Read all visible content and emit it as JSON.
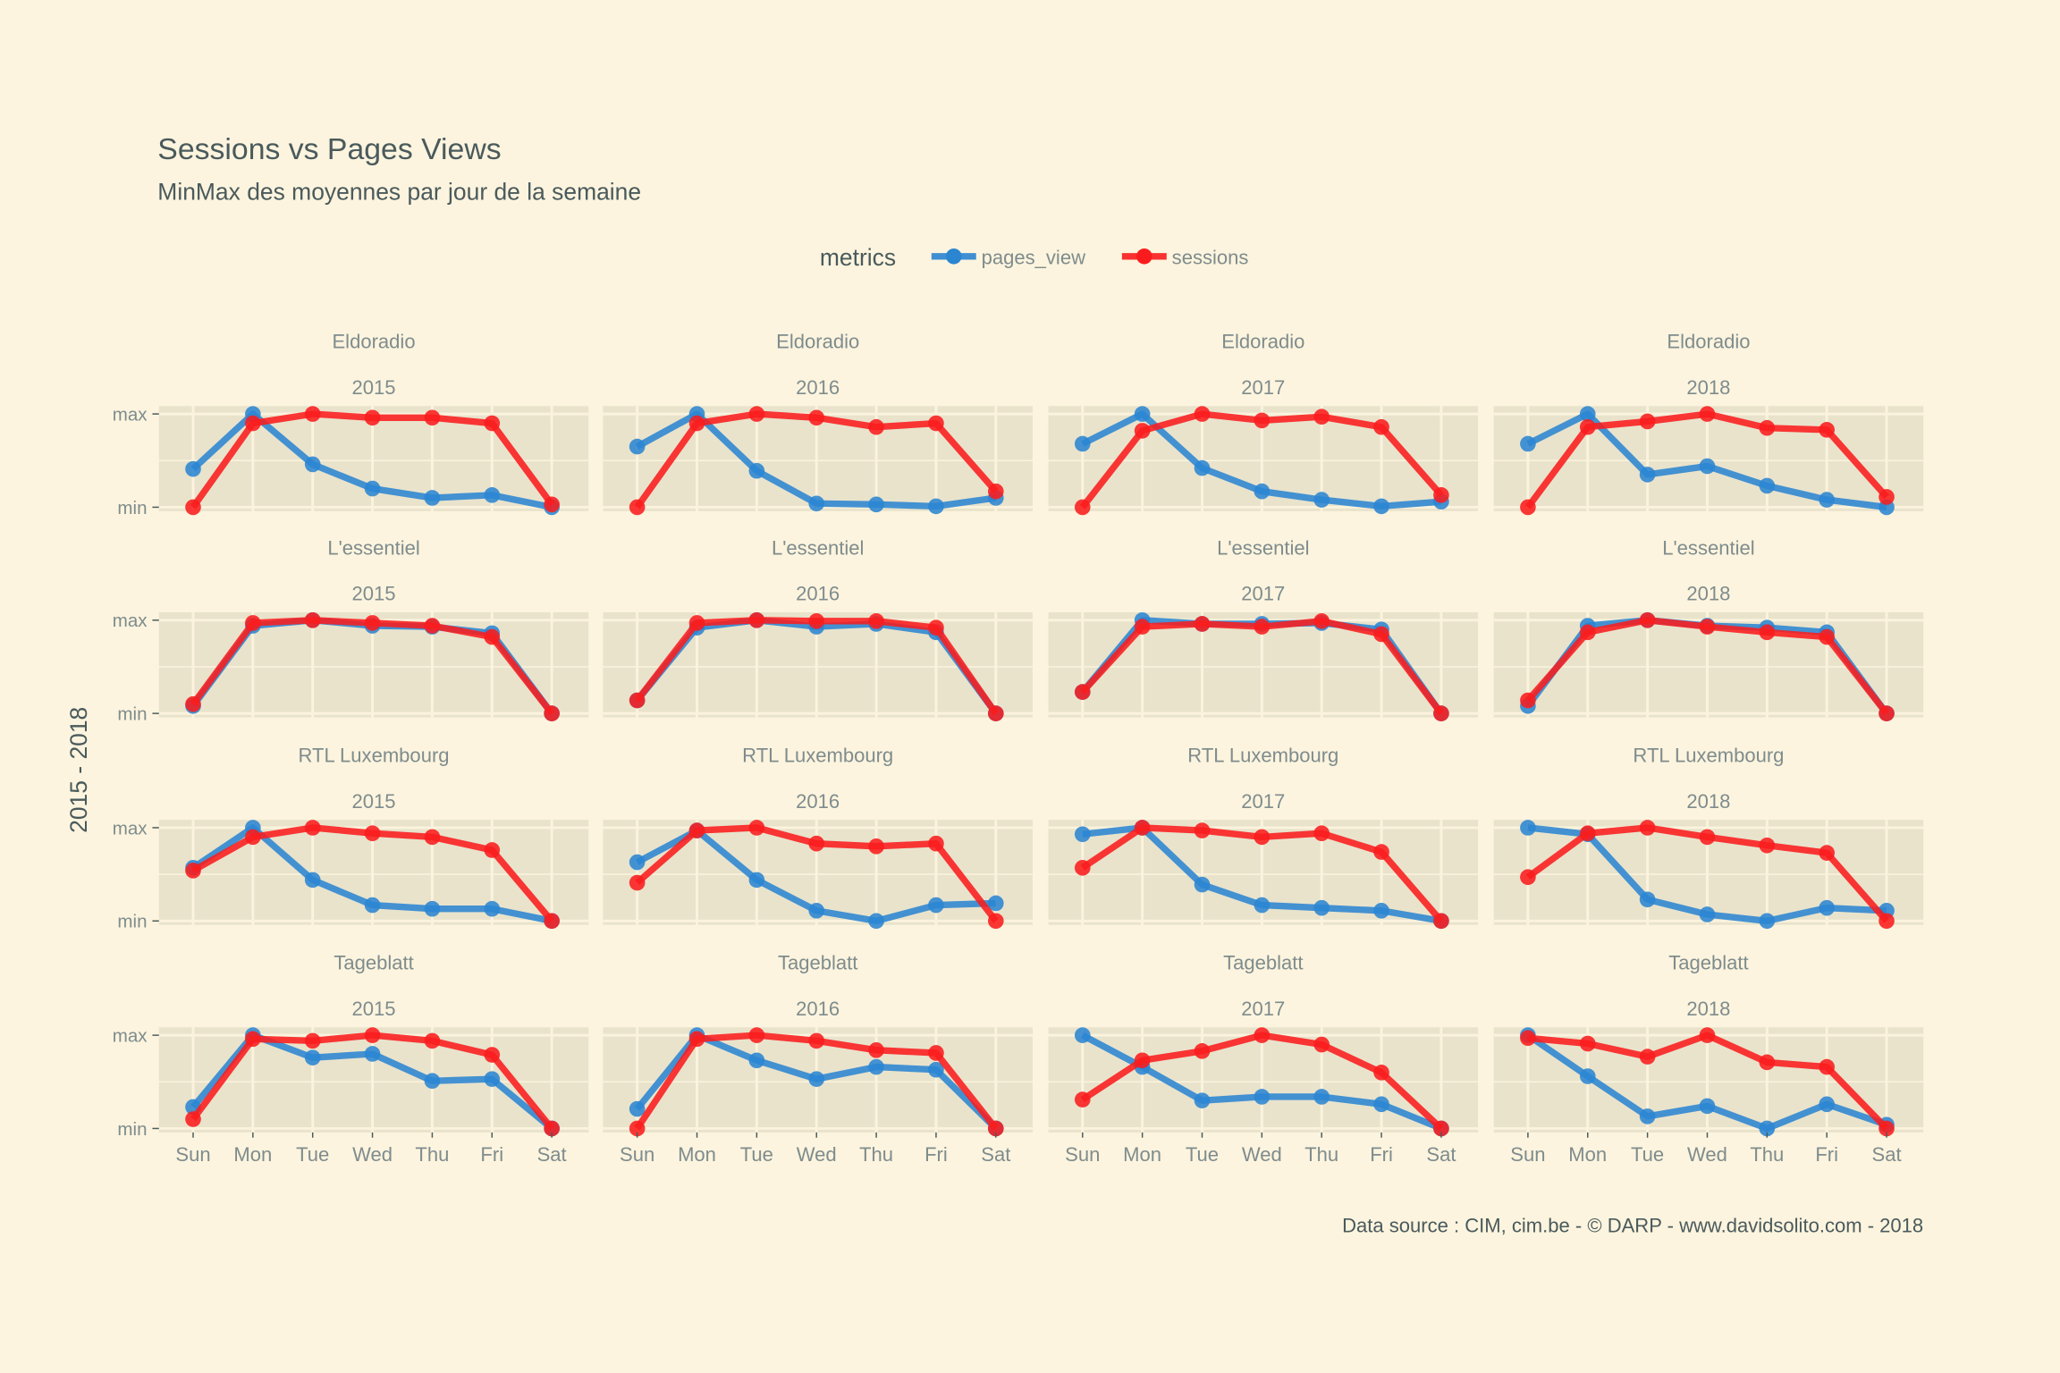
{
  "colors": {
    "background": "#fcf4de",
    "panel": "#e9e3cc",
    "grid": "#fbf3dd",
    "pages_view": "#2b85d1",
    "sessions": "#f91c1e",
    "title": "#4a5a5c",
    "muted": "#7f8c8d"
  },
  "chart_data": {
    "type": "line",
    "title": "Sessions vs Pages Views",
    "subtitle": "MinMax des moyennes par jour de la semaine",
    "caption": "Data source : CIM, cim.be - © DARP - www.davidsolito.com - 2018",
    "ylabel": "2015 - 2018",
    "ytick_labels": [
      "min",
      "max"
    ],
    "ylim": [
      0,
      1
    ],
    "categories": [
      "Sun",
      "Mon",
      "Tue",
      "Wed",
      "Thu",
      "Fri",
      "Sat"
    ],
    "legend": {
      "title": "metrics",
      "position": "top",
      "entries": [
        "pages_view",
        "sessions"
      ]
    },
    "rows": [
      "Eldoradio",
      "L'essentiel",
      "RTL Luxembourg",
      "Tageblatt"
    ],
    "cols": [
      "2015",
      "2016",
      "2017",
      "2018"
    ],
    "panels": [
      {
        "station": "Eldoradio",
        "year": "2015",
        "pages_view": [
          0.41,
          1,
          0.46,
          0.2,
          0.1,
          0.13,
          0
        ],
        "sessions": [
          0,
          0.9,
          1,
          0.96,
          0.96,
          0.9,
          0.03
        ]
      },
      {
        "station": "Eldoradio",
        "year": "2016",
        "pages_view": [
          0.65,
          1,
          0.39,
          0.04,
          0.03,
          0.01,
          0.1
        ],
        "sessions": [
          0,
          0.9,
          1,
          0.96,
          0.86,
          0.9,
          0.17
        ]
      },
      {
        "station": "Eldoradio",
        "year": "2017",
        "pages_view": [
          0.68,
          1,
          0.42,
          0.17,
          0.08,
          0.01,
          0.06
        ],
        "sessions": [
          0,
          0.82,
          1,
          0.93,
          0.97,
          0.86,
          0.13
        ]
      },
      {
        "station": "Eldoradio",
        "year": "2018",
        "pages_view": [
          0.68,
          1,
          0.35,
          0.44,
          0.23,
          0.08,
          0
        ],
        "sessions": [
          0,
          0.86,
          0.92,
          1,
          0.85,
          0.83,
          0.11
        ]
      },
      {
        "station": "L'essentiel",
        "year": "2015",
        "pages_view": [
          0.08,
          0.94,
          1,
          0.94,
          0.93,
          0.86,
          0
        ],
        "sessions": [
          0.1,
          0.97,
          1,
          0.97,
          0.94,
          0.82,
          0
        ]
      },
      {
        "station": "L'essentiel",
        "year": "2016",
        "pages_view": [
          0.14,
          0.92,
          1,
          0.93,
          0.96,
          0.87,
          0
        ],
        "sessions": [
          0.14,
          0.97,
          1,
          0.99,
          0.99,
          0.92,
          0
        ]
      },
      {
        "station": "L'essentiel",
        "year": "2017",
        "pages_view": [
          0.23,
          1,
          0.96,
          0.96,
          0.97,
          0.9,
          0
        ],
        "sessions": [
          0.23,
          0.93,
          0.96,
          0.93,
          0.99,
          0.85,
          0
        ]
      },
      {
        "station": "L'essentiel",
        "year": "2018",
        "pages_view": [
          0.08,
          0.94,
          1,
          0.94,
          0.92,
          0.87,
          0
        ],
        "sessions": [
          0.14,
          0.87,
          1,
          0.93,
          0.87,
          0.82,
          0
        ]
      },
      {
        "station": "RTL Luxembourg",
        "year": "2015",
        "pages_view": [
          0.57,
          1,
          0.44,
          0.17,
          0.13,
          0.13,
          0
        ],
        "sessions": [
          0.54,
          0.9,
          1,
          0.94,
          0.9,
          0.76,
          0
        ]
      },
      {
        "station": "RTL Luxembourg",
        "year": "2016",
        "pages_view": [
          0.63,
          0.97,
          0.44,
          0.11,
          0,
          0.17,
          0.19
        ],
        "sessions": [
          0.41,
          0.97,
          1,
          0.83,
          0.8,
          0.83,
          0
        ]
      },
      {
        "station": "RTL Luxembourg",
        "year": "2017",
        "pages_view": [
          0.93,
          1,
          0.39,
          0.17,
          0.14,
          0.11,
          0
        ],
        "sessions": [
          0.57,
          1,
          0.97,
          0.9,
          0.94,
          0.74,
          0
        ]
      },
      {
        "station": "RTL Luxembourg",
        "year": "2018",
        "pages_view": [
          1,
          0.93,
          0.23,
          0.07,
          0,
          0.14,
          0.11
        ],
        "sessions": [
          0.47,
          0.94,
          1,
          0.9,
          0.81,
          0.73,
          0
        ]
      },
      {
        "station": "Tageblatt",
        "year": "2015",
        "pages_view": [
          0.23,
          1,
          0.76,
          0.8,
          0.51,
          0.53,
          0
        ],
        "sessions": [
          0.1,
          0.96,
          0.94,
          1,
          0.94,
          0.79,
          0
        ]
      },
      {
        "station": "Tageblatt",
        "year": "2016",
        "pages_view": [
          0.21,
          1,
          0.73,
          0.53,
          0.66,
          0.63,
          0
        ],
        "sessions": [
          0,
          0.96,
          1,
          0.94,
          0.84,
          0.81,
          0
        ]
      },
      {
        "station": "Tageblatt",
        "year": "2017",
        "pages_view": [
          1,
          0.66,
          0.3,
          0.34,
          0.34,
          0.26,
          0
        ],
        "sessions": [
          0.31,
          0.73,
          0.83,
          1,
          0.9,
          0.6,
          0
        ]
      },
      {
        "station": "Tageblatt",
        "year": "2018",
        "pages_view": [
          1,
          0.56,
          0.13,
          0.24,
          0,
          0.26,
          0.04
        ],
        "sessions": [
          0.97,
          0.91,
          0.77,
          1,
          0.71,
          0.66,
          0
        ]
      }
    ]
  }
}
